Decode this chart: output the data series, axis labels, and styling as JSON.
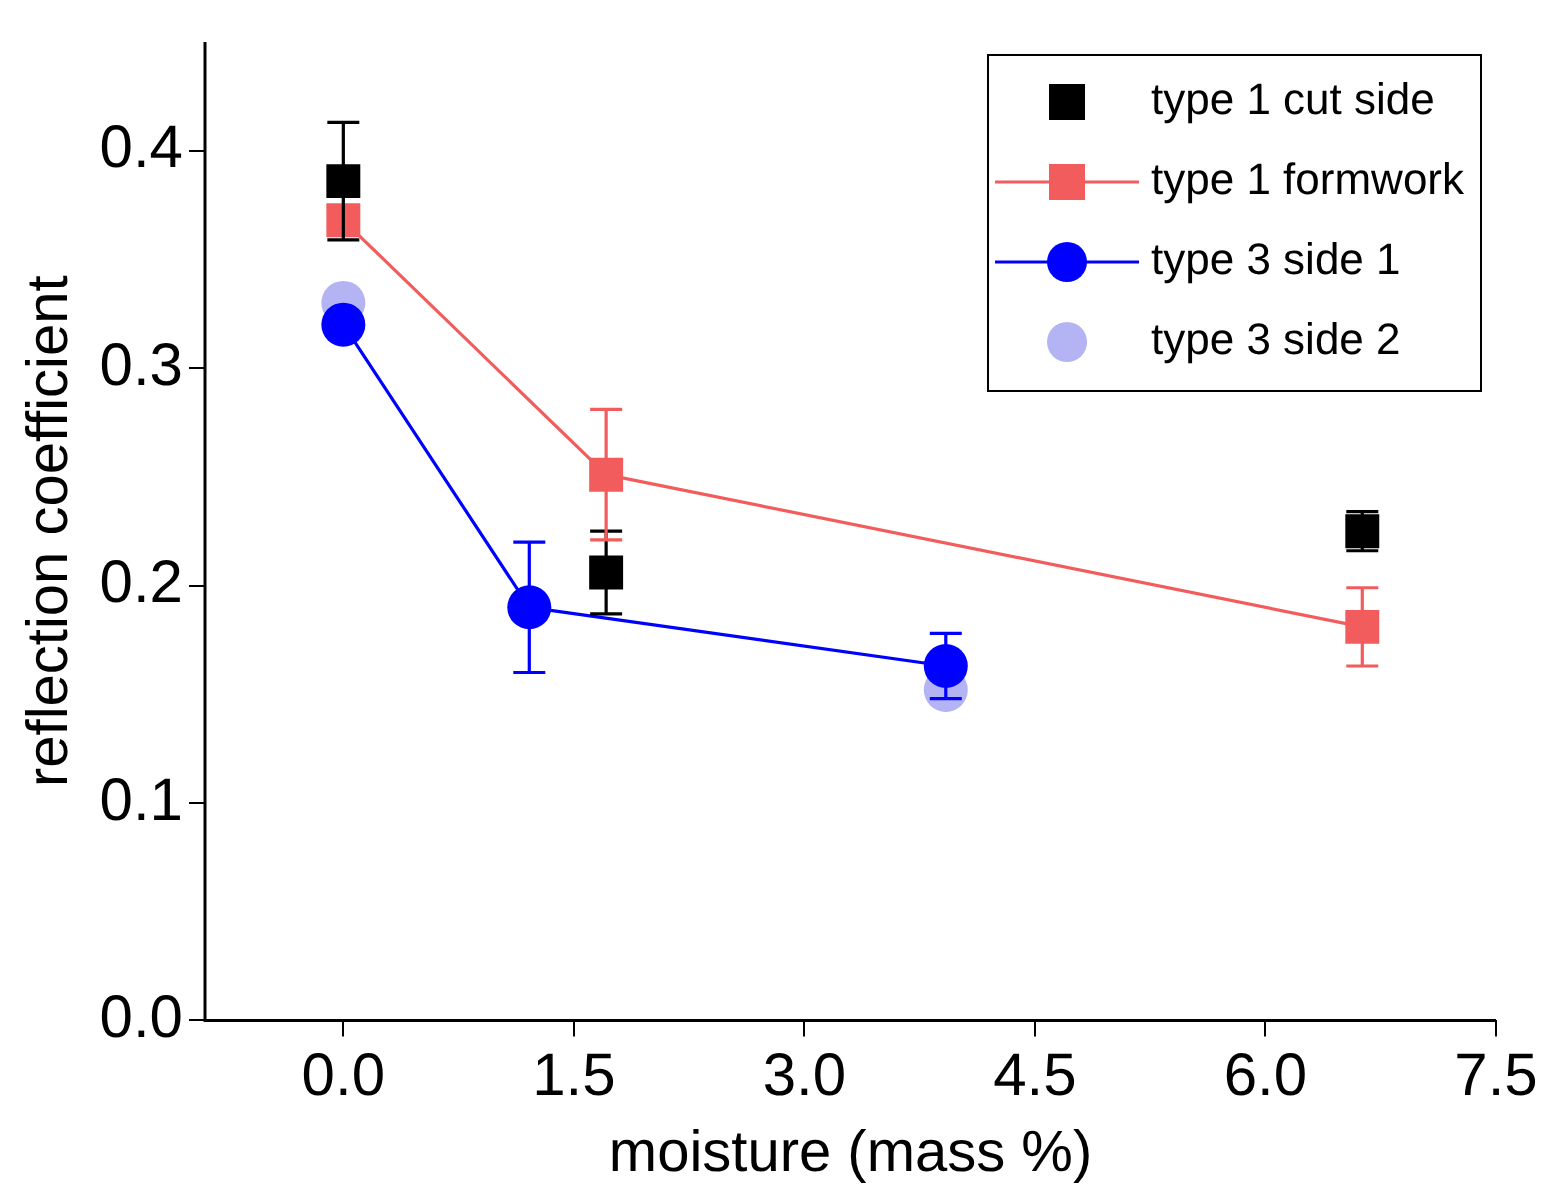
{
  "chart_data": {
    "type": "scatter",
    "xlabel": "moisture (mass %)",
    "ylabel": "reflection coefficient",
    "xlim": [
      -0.9,
      7.5
    ],
    "xticks": [
      {
        "value": 0,
        "label": "0.0"
      },
      1.5,
      {
        "value": 3,
        "label": "3.0"
      },
      4.5,
      {
        "value": 6,
        "label": "6.0"
      },
      7.5
    ],
    "ylim": [
      0,
      0.45
    ],
    "yticks": [
      {
        "value": 0,
        "label": "0.0"
      },
      0.1,
      0.2,
      0.3,
      0.4
    ],
    "grid": false,
    "legend": "top right",
    "series": [
      {
        "name": "type 1 cut side",
        "type": "scatter",
        "marker": "square",
        "color": "#000000",
        "x": [
          0,
          1.71,
          6.63
        ],
        "values": [
          0.386,
          0.206,
          0.225
        ],
        "errors": [
          0.027,
          0.019,
          0.009
        ]
      },
      {
        "name": "type 1 formwork",
        "type": "line",
        "marker": "square",
        "color": "#f25c5c",
        "x": [
          0,
          1.71,
          6.63
        ],
        "values": [
          0.368,
          0.251,
          0.181
        ],
        "errors": [
          null,
          0.03,
          0.018
        ]
      },
      {
        "name": "type 3 side 1",
        "type": "line",
        "marker": "circle",
        "color": "#0000ff",
        "x": [
          0,
          1.21,
          3.92
        ],
        "values": [
          0.32,
          0.19,
          0.163
        ],
        "errors": [
          null,
          0.03,
          0.015
        ]
      },
      {
        "name": "type 3 side 2",
        "type": "scatter",
        "marker": "circle",
        "color": "#b4b4f5",
        "x": [
          0,
          1.21,
          3.92
        ],
        "values": [
          0.33,
          null,
          0.152
        ]
      }
    ]
  }
}
